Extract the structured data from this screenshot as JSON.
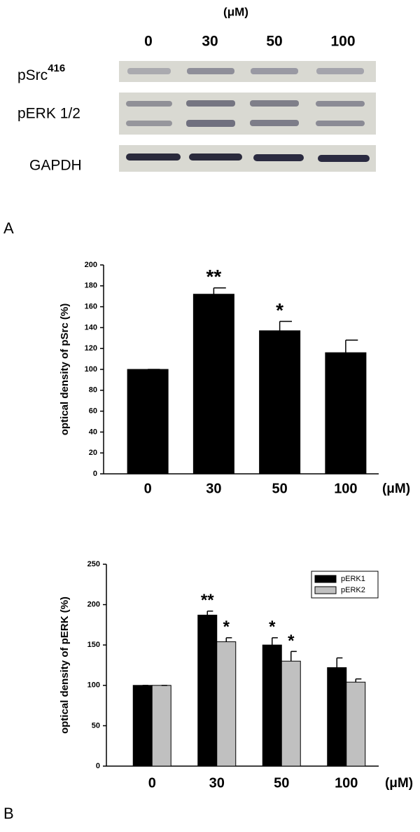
{
  "blot": {
    "unit": "(μM)",
    "lanes": [
      "0",
      "30",
      "50",
      "100"
    ],
    "rows": [
      {
        "label": "pSrc",
        "sup": "416"
      },
      {
        "label": "pERK 1/2"
      },
      {
        "label": "GAPDH"
      }
    ]
  },
  "panel_labels": [
    "A",
    "B"
  ],
  "chart_data": [
    {
      "type": "bar",
      "y_label": "optical density of pSrc (%)",
      "x_unit": "(μM)",
      "categories": [
        "0",
        "30",
        "50",
        "100"
      ],
      "values": [
        100,
        172,
        137,
        116
      ],
      "errors": [
        0,
        6,
        9,
        12
      ],
      "significance": [
        null,
        "**",
        "*",
        null
      ],
      "color": "#000000",
      "ylim": [
        0,
        200
      ],
      "yticks": [
        0,
        20,
        40,
        60,
        80,
        100,
        120,
        140,
        160,
        180,
        200
      ],
      "grid": false
    },
    {
      "type": "bar",
      "y_label": "optical density of pERK (%)",
      "x_unit": "(μM)",
      "categories": [
        "0",
        "30",
        "50",
        "100"
      ],
      "series": [
        {
          "name": "pERK1",
          "color": "#000000",
          "values": [
            100,
            187,
            150,
            122
          ],
          "errors": [
            0,
            5,
            9,
            12
          ],
          "significance": [
            null,
            "**",
            "*",
            null
          ]
        },
        {
          "name": "pERK2",
          "color": "#c0c0c0",
          "values": [
            100,
            154,
            130,
            104
          ],
          "errors": [
            0,
            5,
            12,
            4
          ],
          "significance": [
            null,
            "*",
            "*",
            null
          ]
        }
      ],
      "ylim": [
        0,
        250
      ],
      "yticks": [
        0,
        50,
        100,
        150,
        200,
        250
      ],
      "legend": "top-right",
      "grid": false
    }
  ]
}
